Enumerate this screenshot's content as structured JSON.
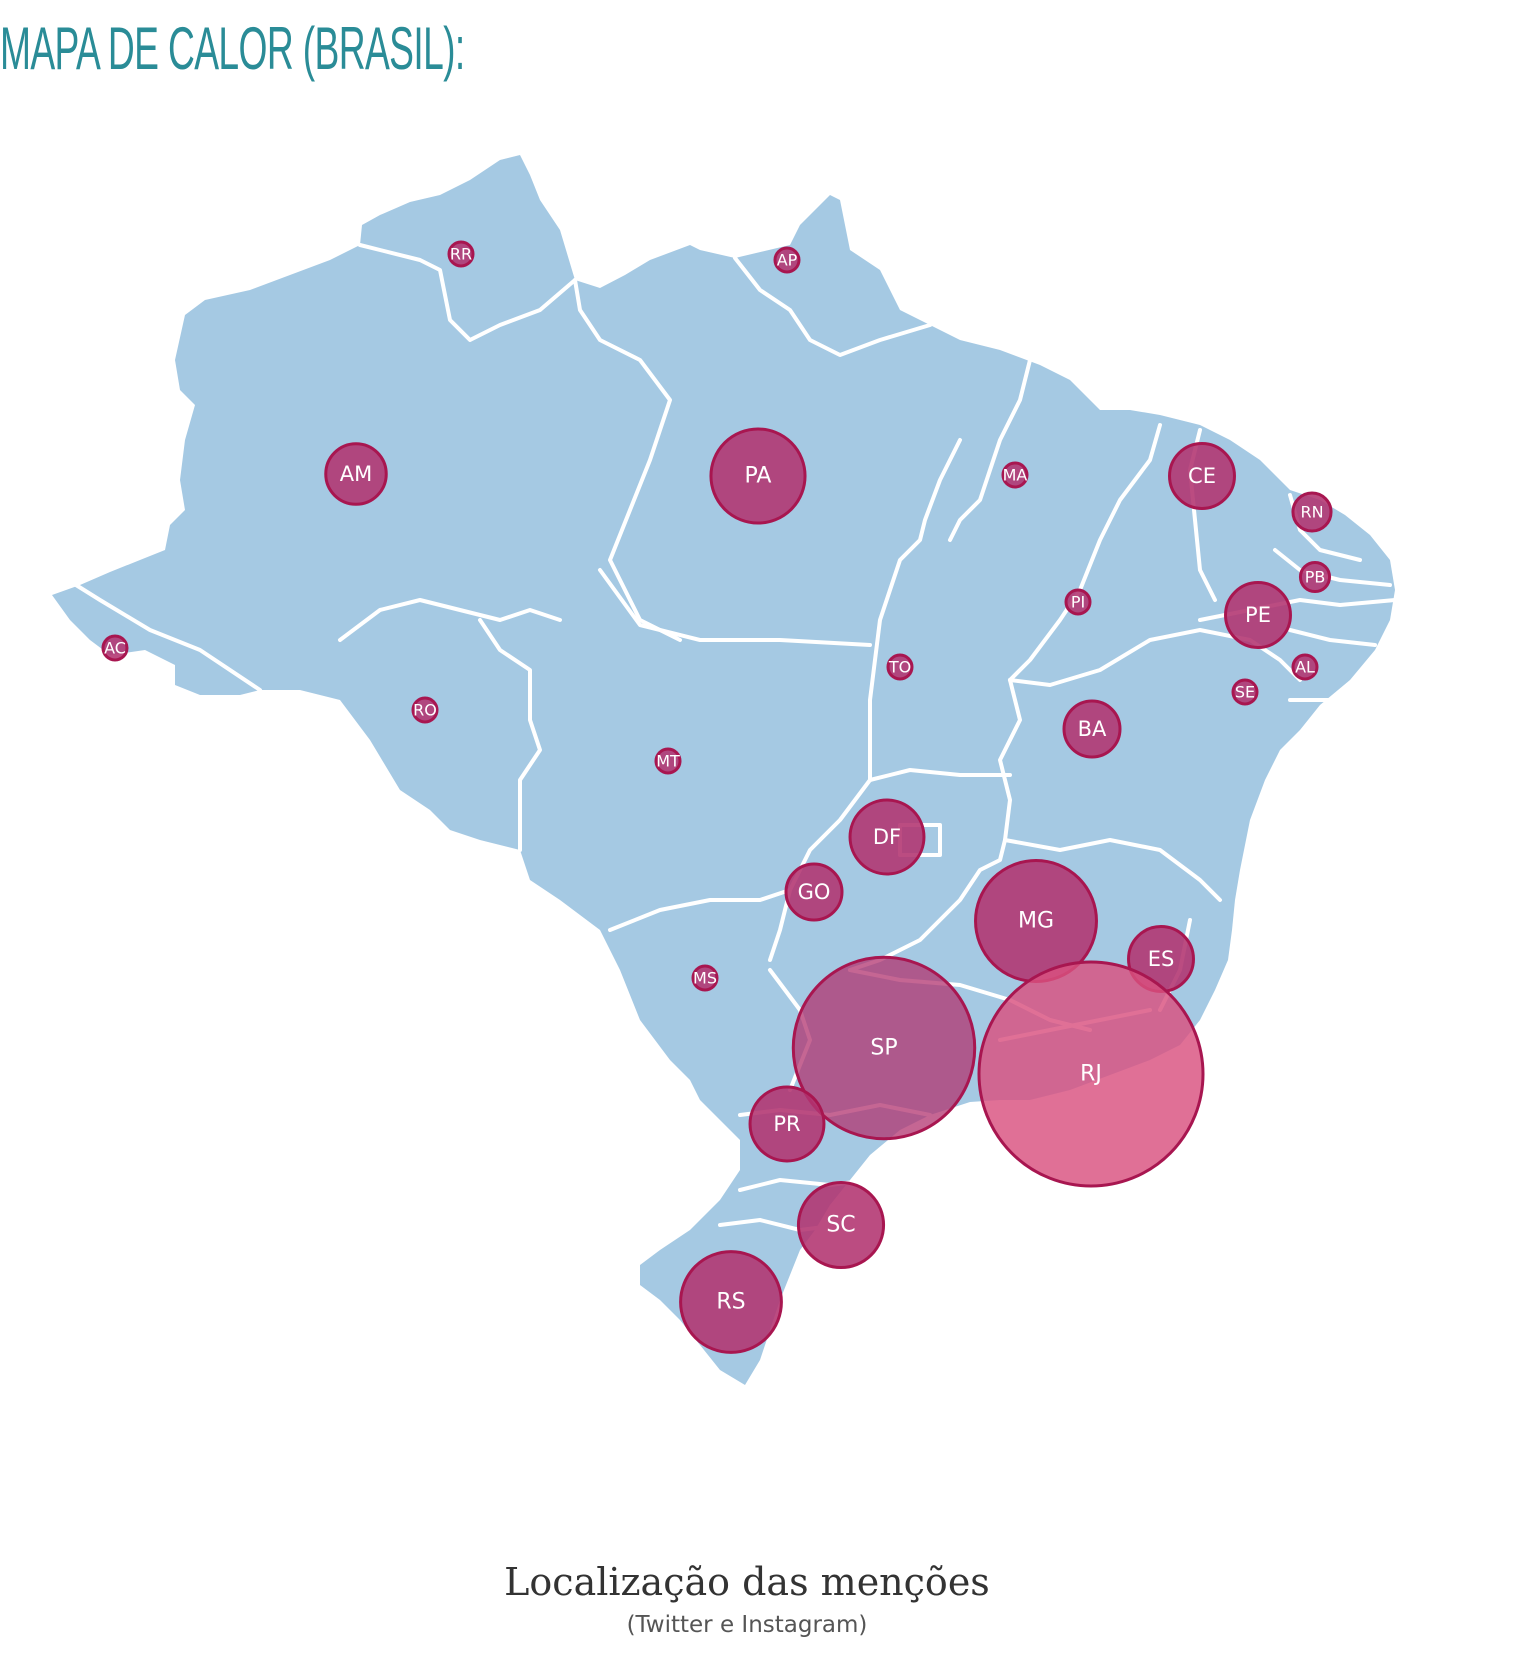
{
  "title": "MAPA DE CALOR (BRASIL):",
  "caption": {
    "title": "Localização das menções",
    "subtitle": "(Twitter e Instagram)"
  },
  "colors": {
    "map_fill": "#a5c9e3",
    "border": "#ffffff",
    "bubble_fill": "#b2336f",
    "bubble_stroke": "#a81650",
    "rj_fill": "#d9517f"
  },
  "chart_data": {
    "type": "map-bubble",
    "region": "Brasil",
    "states": [
      {
        "uf": "RR",
        "relative_size": 0.05
      },
      {
        "uf": "AP",
        "relative_size": 0.06
      },
      {
        "uf": "AM",
        "relative_size": 0.27
      },
      {
        "uf": "PA",
        "relative_size": 0.42
      },
      {
        "uf": "MA",
        "relative_size": 0.09
      },
      {
        "uf": "CE",
        "relative_size": 0.29
      },
      {
        "uf": "RN",
        "relative_size": 0.17
      },
      {
        "uf": "PB",
        "relative_size": 0.13
      },
      {
        "uf": "PE",
        "relative_size": 0.29
      },
      {
        "uf": "PI",
        "relative_size": 0.05
      },
      {
        "uf": "AC",
        "relative_size": 0.06
      },
      {
        "uf": "RO",
        "relative_size": 0.07
      },
      {
        "uf": "TO",
        "relative_size": 0.05
      },
      {
        "uf": "AL",
        "relative_size": 0.07
      },
      {
        "uf": "SE",
        "relative_size": 0.06
      },
      {
        "uf": "BA",
        "relative_size": 0.25
      },
      {
        "uf": "MT",
        "relative_size": 0.08
      },
      {
        "uf": "DF",
        "relative_size": 0.33
      },
      {
        "uf": "GO",
        "relative_size": 0.25
      },
      {
        "uf": "MG",
        "relative_size": 0.54
      },
      {
        "uf": "ES",
        "relative_size": 0.29
      },
      {
        "uf": "MS",
        "relative_size": 0.07
      },
      {
        "uf": "SP",
        "relative_size": 0.81
      },
      {
        "uf": "RJ",
        "relative_size": 1.0
      },
      {
        "uf": "PR",
        "relative_size": 0.33
      },
      {
        "uf": "SC",
        "relative_size": 0.38
      },
      {
        "uf": "RS",
        "relative_size": 0.45
      }
    ]
  }
}
